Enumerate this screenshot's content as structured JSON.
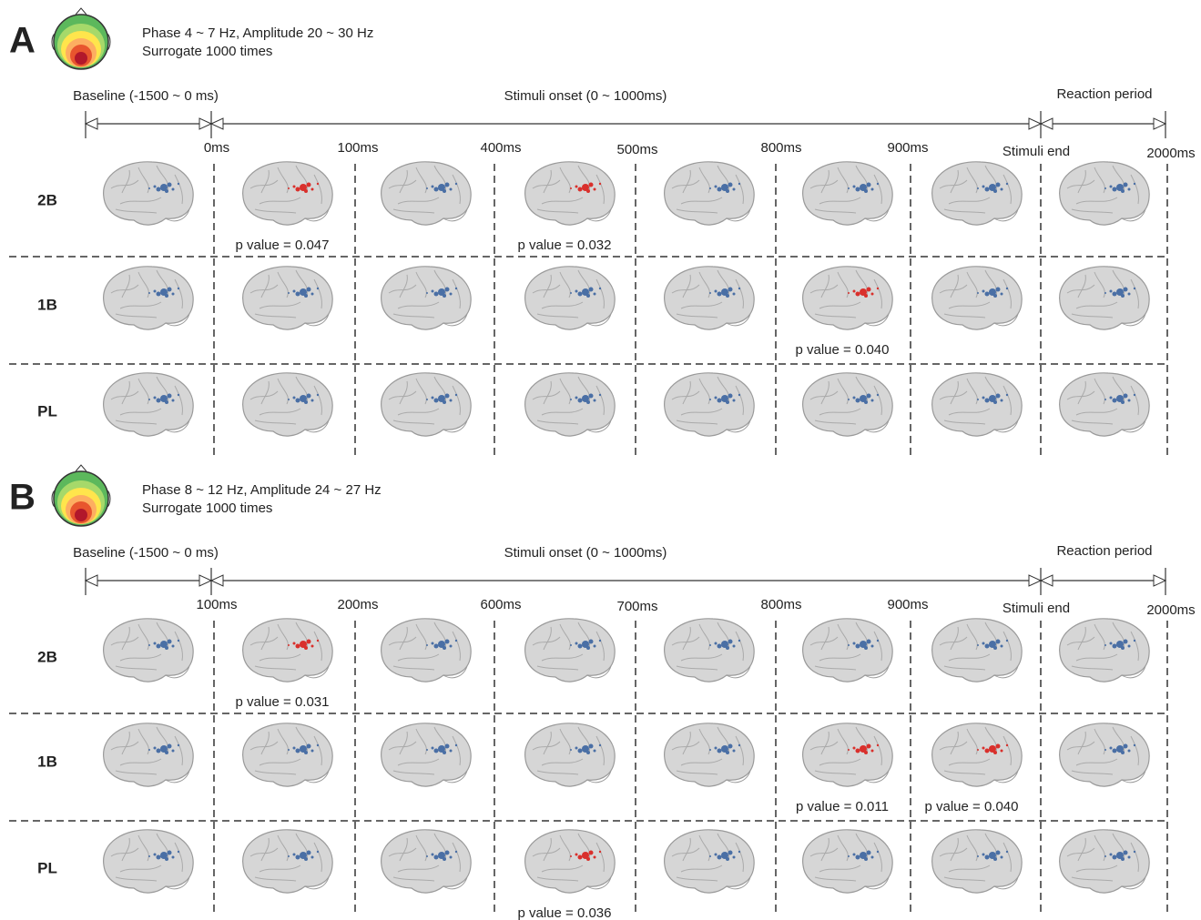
{
  "panels": [
    {
      "letter": "A",
      "info": [
        "Phase 4 ~ 7 Hz, Amplitude 20 ~ 30 Hz",
        "Surrogate 1000 times"
      ],
      "periods": [
        "Baseline (-1500 ~ 0 ms)",
        "Stimuli onset (0 ~ 1000ms)",
        "Reaction period"
      ],
      "times": [
        "0ms",
        "100ms",
        "400ms",
        "500ms",
        "800ms",
        "900ms",
        "Stimuli end",
        "2000ms"
      ],
      "rows": [
        {
          "label": "2B",
          "cells": [
            null,
            "p value = 0.047",
            null,
            "p value = 0.032",
            null,
            null,
            null,
            null
          ]
        },
        {
          "label": "1B",
          "cells": [
            null,
            null,
            null,
            null,
            null,
            "p value = 0.040",
            null,
            null
          ]
        },
        {
          "label": "PL",
          "cells": [
            null,
            null,
            null,
            null,
            null,
            null,
            null,
            null
          ]
        }
      ]
    },
    {
      "letter": "B",
      "info": [
        "Phase 8 ~ 12 Hz, Amplitude 24 ~ 27 Hz",
        "Surrogate 1000 times"
      ],
      "periods": [
        "Baseline (-1500 ~ 0 ms)",
        "Stimuli onset (0 ~ 1000ms)",
        "Reaction period"
      ],
      "times": [
        "100ms",
        "200ms",
        "600ms",
        "700ms",
        "800ms",
        "900ms",
        "Stimuli end",
        "2000ms"
      ],
      "rows": [
        {
          "label": "2B",
          "cells": [
            null,
            "p value = 0.031",
            null,
            null,
            null,
            null,
            null,
            null
          ]
        },
        {
          "label": "1B",
          "cells": [
            null,
            null,
            null,
            null,
            null,
            "p value = 0.011",
            "p value = 0.040",
            null
          ]
        },
        {
          "label": "PL",
          "cells": [
            null,
            null,
            null,
            "p value = 0.036",
            null,
            null,
            null,
            null
          ]
        }
      ]
    }
  ]
}
